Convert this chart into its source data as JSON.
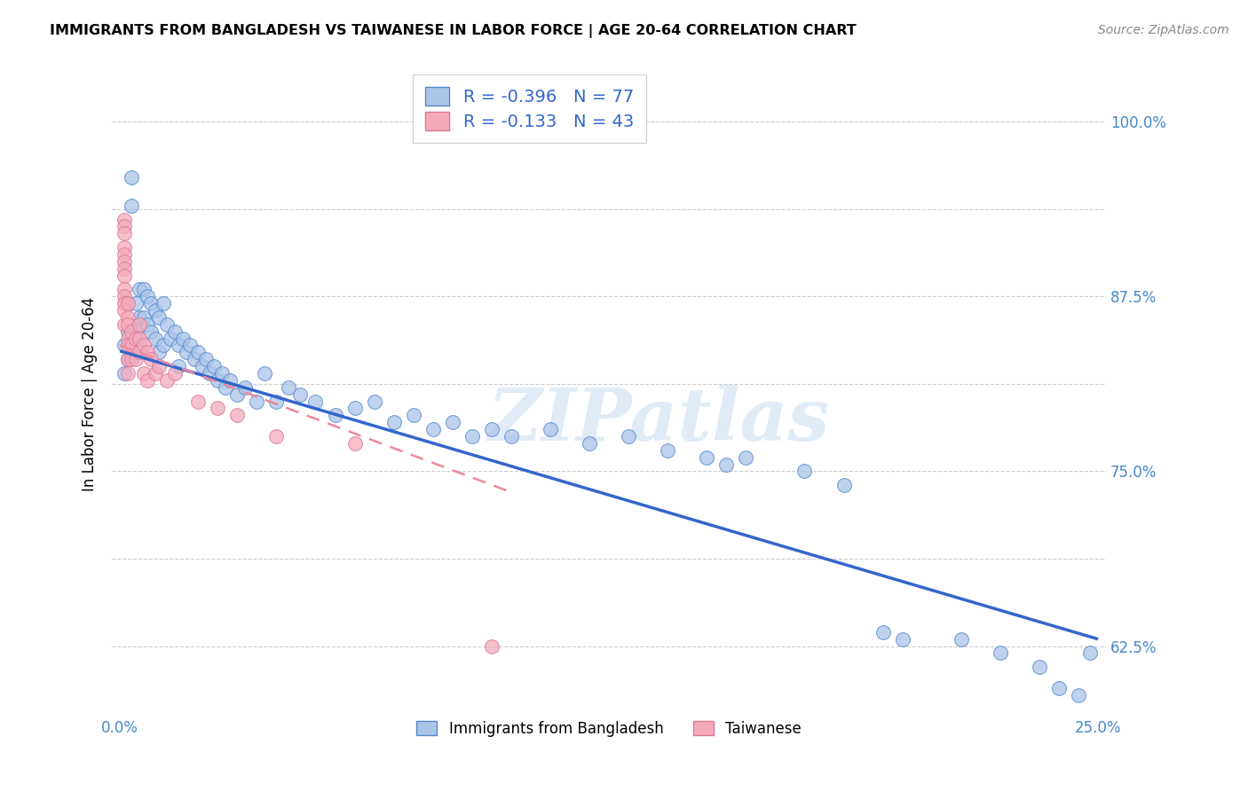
{
  "title": "IMMIGRANTS FROM BANGLADESH VS TAIWANESE IN LABOR FORCE | AGE 20-64 CORRELATION CHART",
  "source": "Source: ZipAtlas.com",
  "ylabel": "In Labor Force | Age 20-64",
  "xlim": [
    -0.002,
    0.252
  ],
  "ylim": [
    0.575,
    1.035
  ],
  "x_tick_positions": [
    0.0,
    0.05,
    0.1,
    0.15,
    0.2,
    0.25
  ],
  "x_tick_labels": [
    "0.0%",
    "",
    "",
    "",
    "",
    "25.0%"
  ],
  "y_tick_positions": [
    0.625,
    0.6875,
    0.75,
    0.8125,
    0.875,
    0.9375,
    1.0
  ],
  "y_tick_labels": [
    "62.5%",
    "",
    "75.0%",
    "",
    "87.5%",
    "",
    "100.0%"
  ],
  "legend_label1": "Immigrants from Bangladesh",
  "legend_label2": "Taiwanese",
  "legend_line1": "R = -0.396   N = 77",
  "legend_line2": "R = -0.133   N = 43",
  "color_blue_fill": "#aac4e8",
  "color_blue_edge": "#5588cc",
  "color_pink_fill": "#f4aabb",
  "color_pink_edge": "#dd7799",
  "line_blue_color": "#3366cc",
  "line_pink_color": "#ee8899",
  "watermark": "ZIPatlas",
  "bg_color": "#ffffff",
  "grid_color": "#cccccc",
  "bd_x": [
    0.001,
    0.001,
    0.002,
    0.002,
    0.002,
    0.003,
    0.003,
    0.004,
    0.004,
    0.005,
    0.005,
    0.005,
    0.006,
    0.006,
    0.007,
    0.007,
    0.008,
    0.008,
    0.009,
    0.009,
    0.01,
    0.01,
    0.011,
    0.011,
    0.012,
    0.013,
    0.014,
    0.015,
    0.015,
    0.016,
    0.017,
    0.018,
    0.019,
    0.02,
    0.021,
    0.022,
    0.023,
    0.024,
    0.025,
    0.026,
    0.027,
    0.028,
    0.03,
    0.032,
    0.035,
    0.037,
    0.04,
    0.043,
    0.046,
    0.05,
    0.055,
    0.06,
    0.065,
    0.07,
    0.075,
    0.08,
    0.085,
    0.09,
    0.095,
    0.1,
    0.11,
    0.12,
    0.13,
    0.14,
    0.15,
    0.155,
    0.16,
    0.175,
    0.185,
    0.195,
    0.2,
    0.215,
    0.225,
    0.235,
    0.24,
    0.245,
    0.248
  ],
  "bd_y": [
    0.84,
    0.82,
    0.87,
    0.85,
    0.83,
    0.96,
    0.94,
    0.87,
    0.85,
    0.88,
    0.86,
    0.84,
    0.88,
    0.86,
    0.875,
    0.855,
    0.87,
    0.85,
    0.865,
    0.845,
    0.86,
    0.835,
    0.87,
    0.84,
    0.855,
    0.845,
    0.85,
    0.84,
    0.825,
    0.845,
    0.835,
    0.84,
    0.83,
    0.835,
    0.825,
    0.83,
    0.82,
    0.825,
    0.815,
    0.82,
    0.81,
    0.815,
    0.805,
    0.81,
    0.8,
    0.82,
    0.8,
    0.81,
    0.805,
    0.8,
    0.79,
    0.795,
    0.8,
    0.785,
    0.79,
    0.78,
    0.785,
    0.775,
    0.78,
    0.775,
    0.78,
    0.77,
    0.775,
    0.765,
    0.76,
    0.755,
    0.76,
    0.75,
    0.74,
    0.635,
    0.63,
    0.63,
    0.62,
    0.61,
    0.595,
    0.59,
    0.62
  ],
  "tw_x": [
    0.001,
    0.001,
    0.001,
    0.001,
    0.001,
    0.001,
    0.001,
    0.001,
    0.001,
    0.001,
    0.001,
    0.001,
    0.001,
    0.002,
    0.002,
    0.002,
    0.002,
    0.002,
    0.002,
    0.002,
    0.003,
    0.003,
    0.003,
    0.004,
    0.004,
    0.005,
    0.005,
    0.005,
    0.006,
    0.006,
    0.007,
    0.007,
    0.008,
    0.009,
    0.01,
    0.012,
    0.014,
    0.02,
    0.025,
    0.03,
    0.04,
    0.06,
    0.095
  ],
  "tw_y": [
    0.93,
    0.925,
    0.92,
    0.91,
    0.905,
    0.9,
    0.895,
    0.89,
    0.88,
    0.875,
    0.87,
    0.865,
    0.855,
    0.87,
    0.86,
    0.855,
    0.845,
    0.84,
    0.83,
    0.82,
    0.85,
    0.84,
    0.83,
    0.845,
    0.83,
    0.855,
    0.845,
    0.835,
    0.84,
    0.82,
    0.835,
    0.815,
    0.83,
    0.82,
    0.825,
    0.815,
    0.82,
    0.8,
    0.795,
    0.79,
    0.775,
    0.77,
    0.625
  ],
  "bd_trend_x0": 0.0,
  "bd_trend_y0": 0.836,
  "bd_trend_x1": 0.25,
  "bd_trend_y1": 0.63,
  "tw_trend_x0": 0.0,
  "tw_trend_y0": 0.84,
  "tw_trend_x1": 0.1,
  "tw_trend_y1": 0.735
}
